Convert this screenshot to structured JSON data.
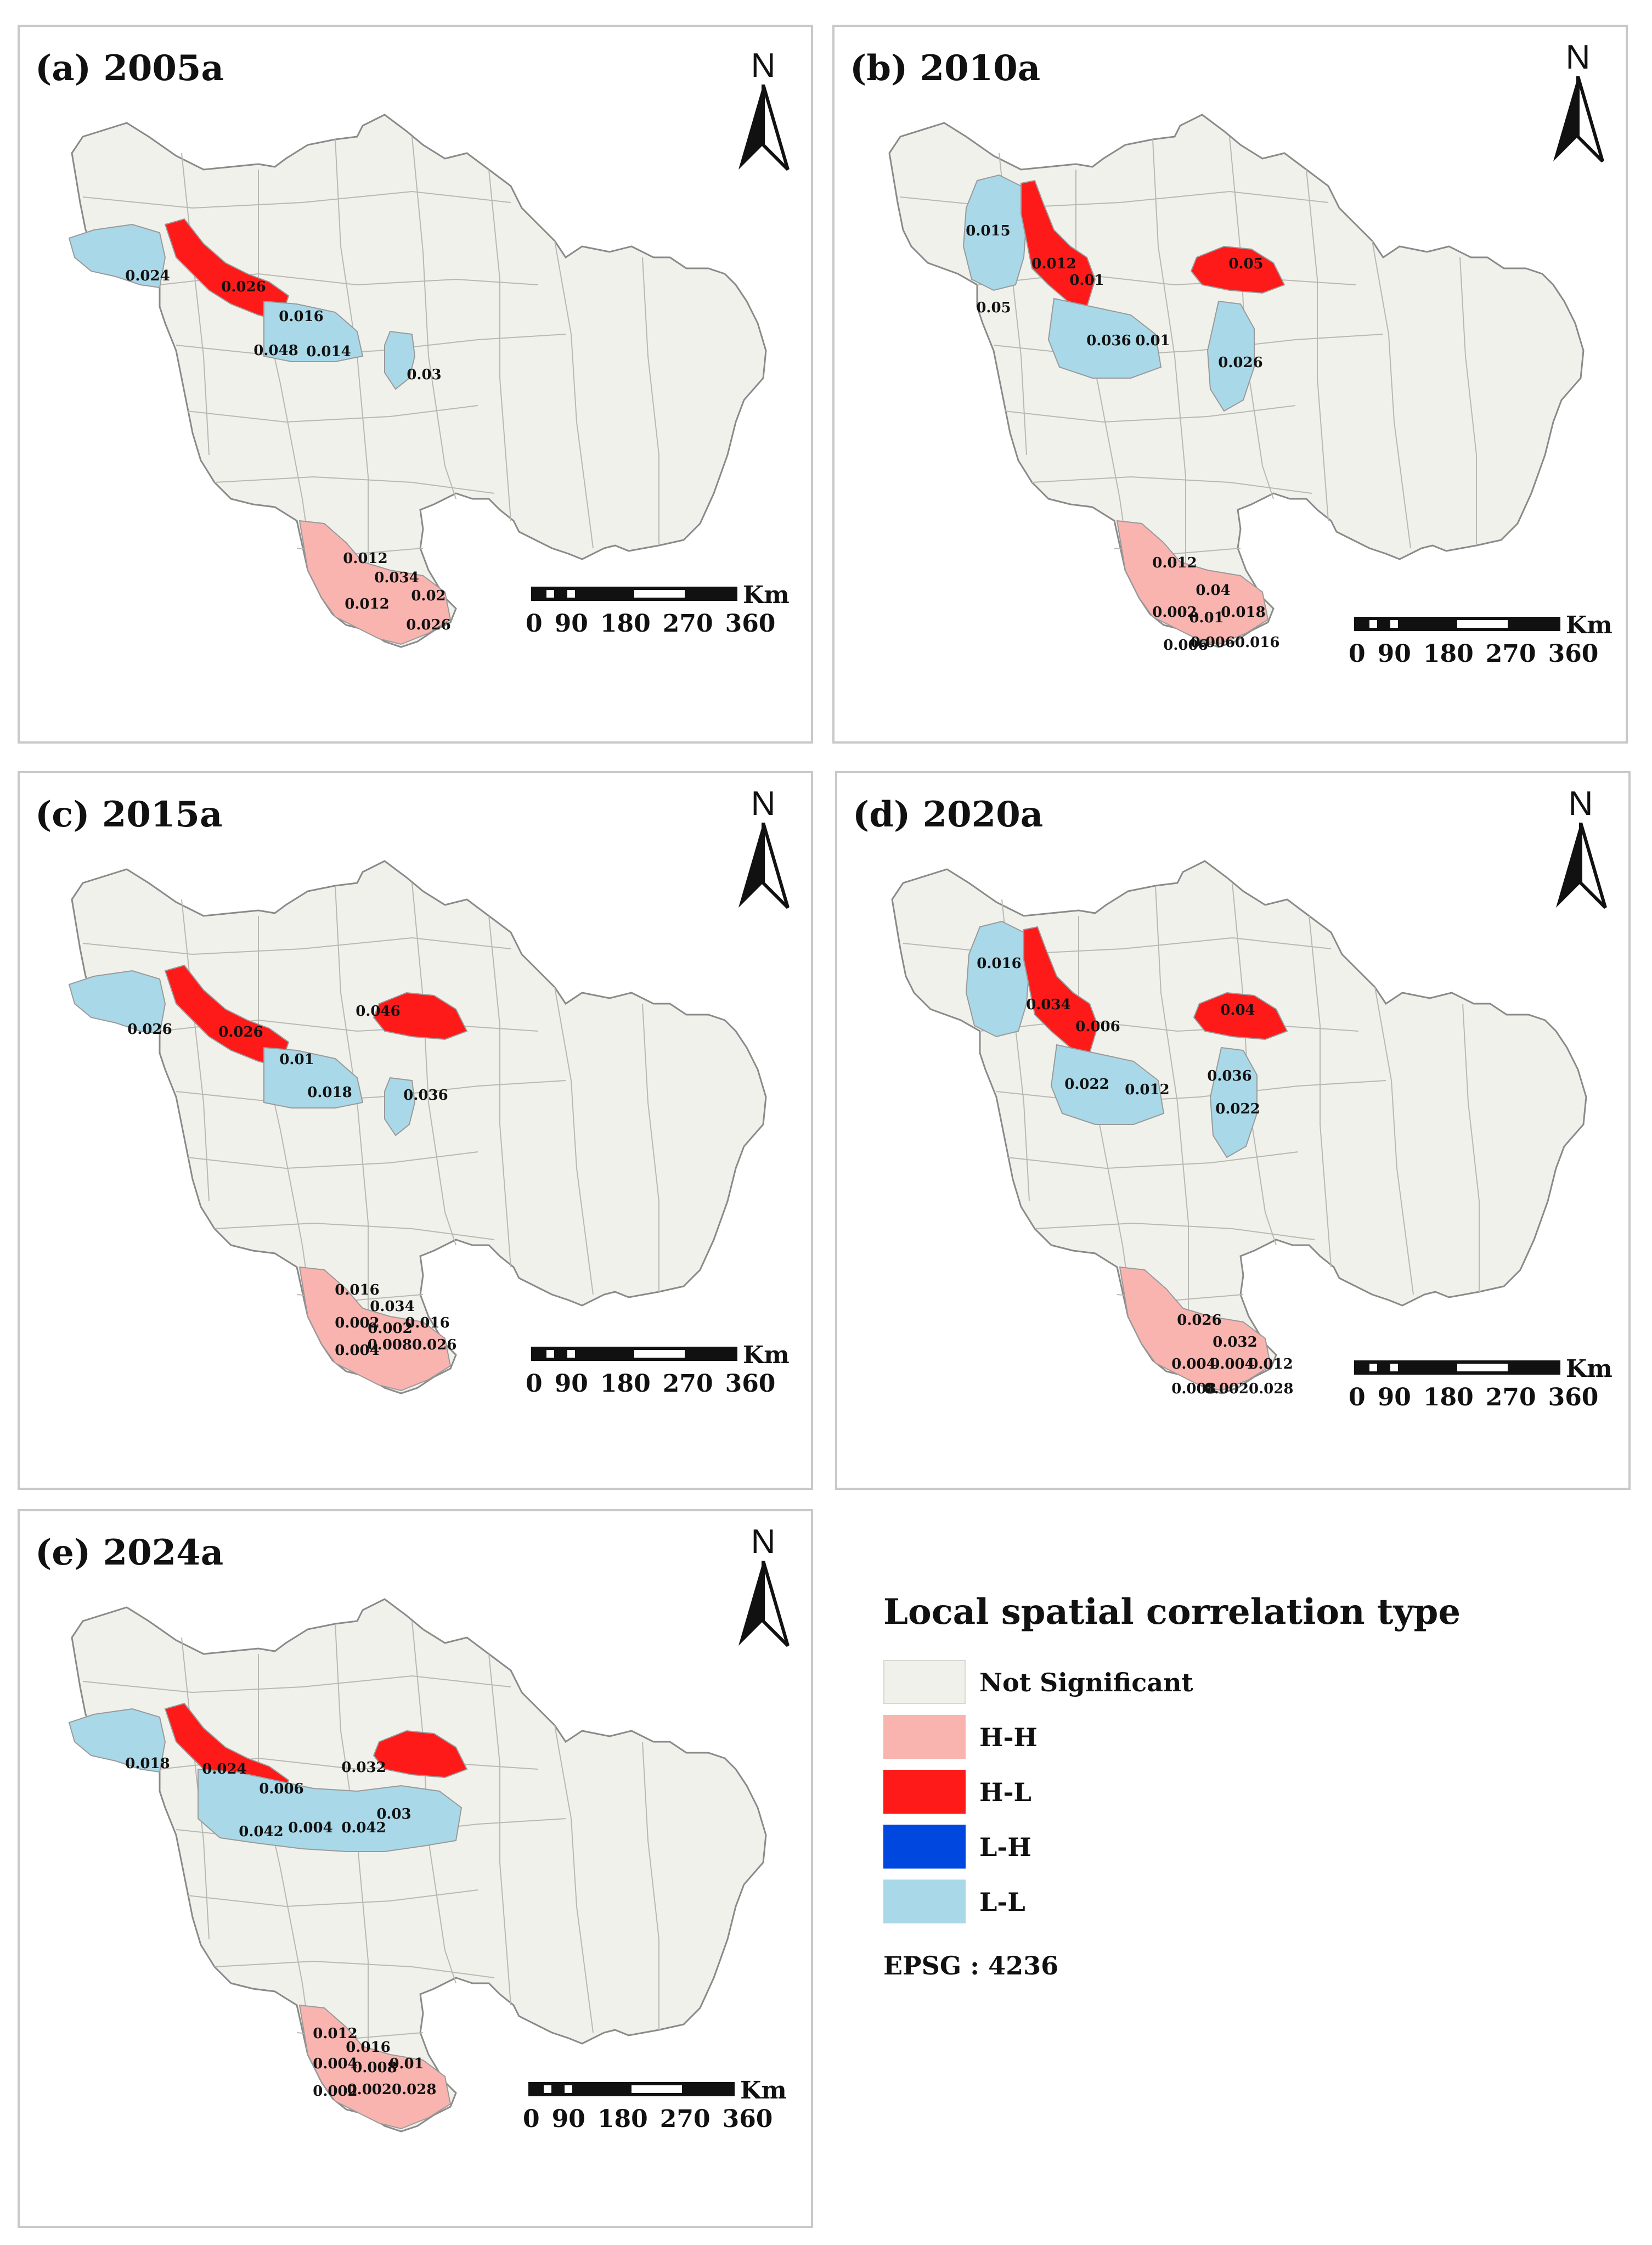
{
  "colors": {
    "not_significant": "#f1f1ec",
    "hh": "#f9b4b0",
    "hl": "#ff1a1a",
    "lh": "#0047e0",
    "ll": "#a9d8e8",
    "boundary": "#8a8a8a"
  },
  "north_label": "N",
  "scale": {
    "unit": "Km",
    "ticks": [
      "0",
      "90",
      "180",
      "270",
      "360"
    ]
  },
  "panels": [
    {
      "title": "(a) 2005a",
      "ll_values": [
        "0.024",
        "0.048",
        "0.014",
        "0.03"
      ],
      "hl_values": [
        "0.026",
        "0.016"
      ],
      "hh_values": [
        "0.012",
        "0.034",
        "0.012",
        "0.02",
        "0.026"
      ]
    },
    {
      "title": "(b) 2010a",
      "ll_values": [
        "0.015",
        "0.05",
        "0.036",
        "0.01",
        "0.026"
      ],
      "hl_values": [
        "0.012",
        "0.01",
        "0.05"
      ],
      "hh_values": [
        "0.012",
        "0.04",
        "0.002",
        "0.01",
        "0.018",
        "0.006",
        "0.0060.016"
      ]
    },
    {
      "title": "(c) 2015a",
      "ll_values": [
        "0.026",
        "0.018",
        "0.036"
      ],
      "hl_values": [
        "0.026",
        "0.01",
        "0.046"
      ],
      "hh_values": [
        "0.016",
        "0.034",
        "0.002",
        "0.002",
        "0.016",
        "0.004",
        "0.0080.026"
      ]
    },
    {
      "title": "(d) 2020a",
      "ll_values": [
        "0.016",
        "0.022",
        "0.012",
        "0.036",
        "0.022"
      ],
      "hl_values": [
        "0.034",
        "0.006",
        "0.04"
      ],
      "hh_values": [
        "0.026",
        "0.032",
        "0.004",
        "0.004",
        "0.012",
        "0.008",
        "0.0020.028"
      ]
    },
    {
      "title": "(e) 2024a",
      "ll_values": [
        "0.018",
        "0.042",
        "0.004",
        "0.042",
        "0.03"
      ],
      "hl_values": [
        "0.024",
        "0.006",
        "0.032"
      ],
      "hh_values": [
        "0.012",
        "0.016",
        "0.004",
        "0.008",
        "0.01",
        "0.002",
        "0.0020.028"
      ]
    }
  ],
  "legend": {
    "title": "Local spatial correlation type",
    "items": [
      "Not Significant",
      "H-H",
      "H-L",
      "L-H",
      "L-L"
    ],
    "epsg": "EPSG : 4236"
  }
}
